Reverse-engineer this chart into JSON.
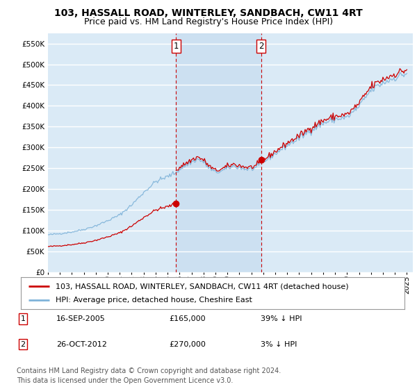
{
  "title": "103, HASSALL ROAD, WINTERLEY, SANDBACH, CW11 4RT",
  "subtitle": "Price paid vs. HM Land Registry's House Price Index (HPI)",
  "ylim": [
    0,
    575000
  ],
  "yticks": [
    0,
    50000,
    100000,
    150000,
    200000,
    250000,
    300000,
    350000,
    400000,
    450000,
    500000,
    550000
  ],
  "xlim_start": 1995.0,
  "xlim_end": 2025.5,
  "plot_bg_color": "#daeaf6",
  "grid_color": "#ffffff",
  "red_color": "#cc0000",
  "blue_color": "#7fb3d9",
  "shade_color": "#c8dff2",
  "sale1_x": 2005.71,
  "sale1_y": 165000,
  "sale2_x": 2012.82,
  "sale2_y": 270000,
  "legend_red_label": "103, HASSALL ROAD, WINTERLEY, SANDBACH, CW11 4RT (detached house)",
  "legend_blue_label": "HPI: Average price, detached house, Cheshire East",
  "table_row1": [
    "1",
    "16-SEP-2005",
    "£165,000",
    "39% ↓ HPI"
  ],
  "table_row2": [
    "2",
    "26-OCT-2012",
    "£270,000",
    "3% ↓ HPI"
  ],
  "footnote": "Contains HM Land Registry data © Crown copyright and database right 2024.\nThis data is licensed under the Open Government Licence v3.0.",
  "title_fontsize": 10,
  "subtitle_fontsize": 9,
  "tick_fontsize": 7.5,
  "legend_fontsize": 8,
  "table_fontsize": 8,
  "footnote_fontsize": 7
}
